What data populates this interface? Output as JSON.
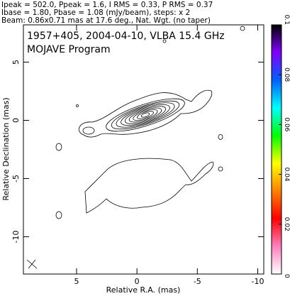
{
  "chart_data": {
    "type": "contour",
    "header": [
      "Ipeak = 502.0, Ppeak = 1.6, I RMS = 0.33, P RMS = 0.37",
      "Ibase = 1.80, Pbase = 1.08 (mJy/beam), steps: x 2",
      "Beam: 0.86x0.71 mas at 17.6 deg., Nat. Wgt. (no taper)"
    ],
    "title": "1957+405, 2004-04-10, VLBA 15.4 GHz",
    "subtitle": "MOJAVE Program",
    "xlabel": "Relative R.A. (mas)",
    "ylabel": "Relative Declination (mas)",
    "xlim": [
      9.4,
      -10.5
    ],
    "xticks": [
      5,
      0,
      -5,
      -10
    ],
    "ylim": [
      -13.2,
      8.2
    ],
    "yticks": [
      5,
      0,
      -5,
      -10
    ],
    "colorbar": {
      "lim": [
        0,
        0.1
      ],
      "ticks": [
        0,
        0.02,
        0.04,
        0.06,
        0.08,
        0.1
      ],
      "colors": [
        "#ffffff",
        "#ff80c0",
        "#ff0000",
        "#ff8000",
        "#ffff00",
        "#00ff00",
        "#00ffff",
        "#0060ff",
        "#8000ff",
        "#000000"
      ]
    }
  }
}
